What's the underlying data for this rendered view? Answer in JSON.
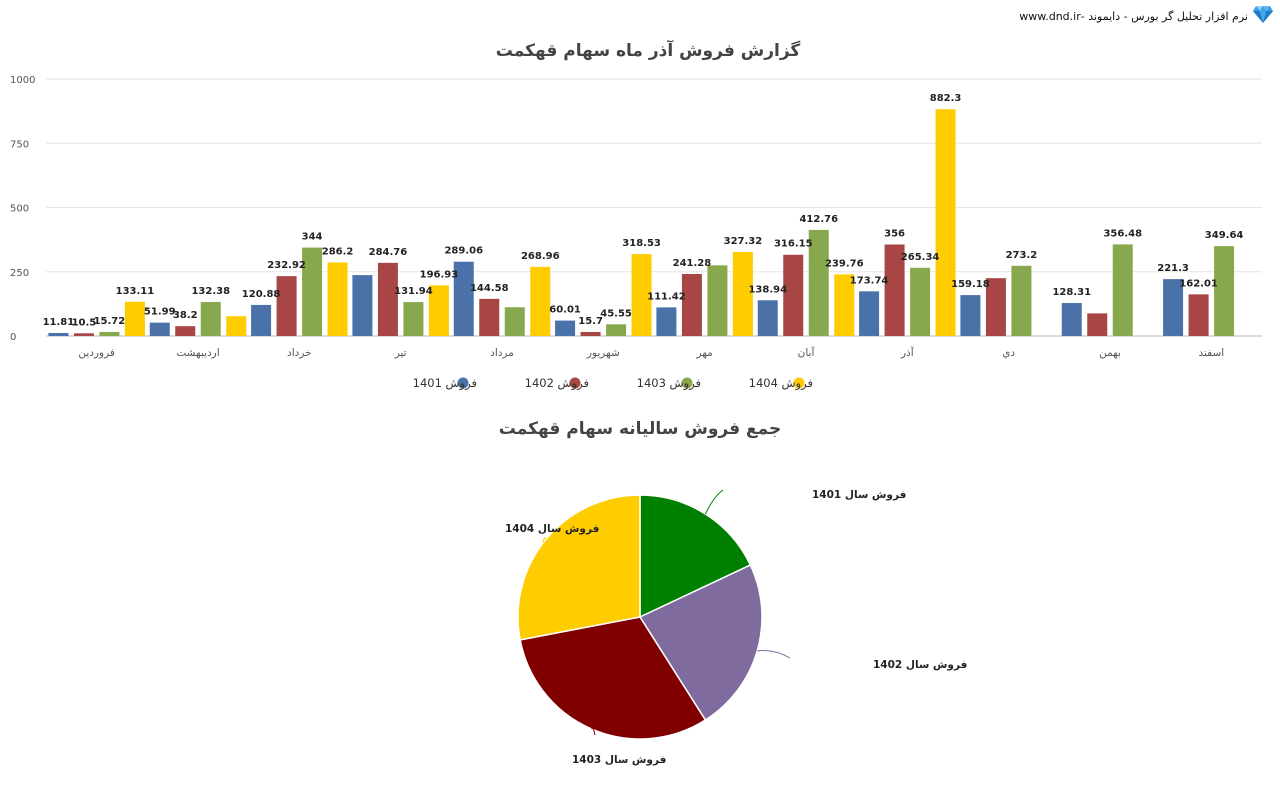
{
  "brand": {
    "text": "نرم افزار تحلیل گر بورس - دایموند -www.dnd.ir",
    "icon": "diamond-icon"
  },
  "chart_data": [
    {
      "type": "bar",
      "title": "گزارش فروش آذر ماه سهام قهکمت",
      "categories": [
        "فروردین",
        "اردیبهشت",
        "خرداد",
        "تیر",
        "مرداد",
        "شهریور",
        "مهر",
        "آبان",
        "آذر",
        "دي",
        "بهمن",
        "اسفند"
      ],
      "series": [
        {
          "name": "فروش 1401",
          "color": "#4a72a8",
          "values": [
            11.81,
            51.99,
            120.88,
            237,
            289.06,
            60.01,
            111.42,
            138.94,
            173.74,
            159.18,
            128.31,
            221.3
          ],
          "labels": [
            "11.81",
            "51.99",
            "120.88",
            "",
            "289.06",
            "60.01",
            "111.42",
            "138.94",
            "173.74",
            "159.18",
            "128.31",
            "221.3"
          ]
        },
        {
          "name": "فروش 1402",
          "color": "#a84545",
          "values": [
            10.5,
            38.2,
            232.92,
            284.76,
            144.58,
            15.7,
            241.28,
            316.15,
            356,
            225,
            88,
            162.01
          ],
          "labels": [
            "10.5",
            "38.2",
            "232.92",
            "284.76",
            "144.58",
            "15.7",
            "241.28",
            "316.15",
            "356",
            "",
            "",
            "162.01"
          ]
        },
        {
          "name": "فروش 1403",
          "color": "#88a84d",
          "values": [
            15.72,
            132.38,
            344,
            131.94,
            112,
            45.55,
            275,
            412.76,
            265.34,
            273.2,
            356.48,
            349.64
          ],
          "labels": [
            "15.72",
            "132.38",
            "344",
            "131.94",
            "",
            "45.55",
            "",
            "412.76",
            "265.34",
            "273.2",
            "356.48",
            "349.64"
          ]
        },
        {
          "name": "فروش 1404",
          "color": "#ffcc00",
          "values": [
            133.11,
            77,
            286.2,
            196.93,
            268.96,
            318.53,
            327.32,
            239.76,
            882.3,
            null,
            null,
            null
          ],
          "labels": [
            "133.11",
            "",
            "286.2",
            "196.93",
            "268.96",
            "318.53",
            "327.32",
            "239.76",
            "882.3",
            "",
            "",
            ""
          ]
        }
      ],
      "ylim": [
        0,
        1000
      ],
      "yticks": [
        "0",
        "250",
        "500",
        "750",
        "1000"
      ],
      "grid": true,
      "legend": "bottom"
    },
    {
      "type": "pie",
      "title": "جمع فروش سالیانه سهام قهکمت",
      "slices": [
        {
          "label": "فروش سال 1401",
          "color": "#008000",
          "value": 18
        },
        {
          "label": "فروش سال 1402",
          "color": "#7f6b9e",
          "value": 23
        },
        {
          "label": "فروش سال 1403",
          "color": "#800000",
          "value": 31
        },
        {
          "label": "فروش سال 1404",
          "color": "#ffcc00",
          "value": 28
        }
      ]
    }
  ]
}
